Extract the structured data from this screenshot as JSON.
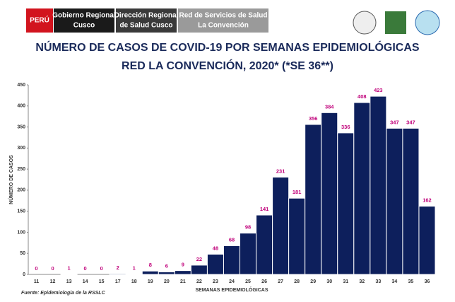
{
  "header": {
    "country": "PERÚ",
    "org1": [
      "Gobierno Regional",
      "Cusco"
    ],
    "org2": [
      "Dirección  Regional",
      "de Salud Cusco"
    ],
    "org3": [
      "Red de Servicios de Salud",
      "La Convención"
    ]
  },
  "chart_data": {
    "type": "bar",
    "title": [
      "NÚMERO DE CASOS DE COVID-19 POR SEMANAS EPIDEMIOLÓGICAS",
      "RED LA CONVENCIÓN, 2020* (*SE 36**)"
    ],
    "x_label": "SEMANAS EPIDEMIOLÓGICAS",
    "y_label": "NÚMERO DE CASOS",
    "source": "Fuente: Epidemiologia de la RSSLC",
    "categories": [
      "11",
      "12",
      "13",
      "14",
      "15",
      "17",
      "18",
      "19",
      "20",
      "21",
      "22",
      "23",
      "24",
      "25",
      "26",
      "27",
      "28",
      "29",
      "30",
      "31",
      "32",
      "33",
      "34",
      "35",
      "36"
    ],
    "values": [
      0,
      0,
      1,
      0,
      0,
      2,
      1,
      8,
      6,
      9,
      22,
      48,
      68,
      98,
      141,
      231,
      181,
      356,
      384,
      336,
      408,
      423,
      347,
      347,
      162
    ],
    "color": "#0d1f5c",
    "label_color": "#c0007a",
    "ylim": [
      0,
      450
    ],
    "yticks": [
      0,
      50,
      100,
      150,
      200,
      250,
      300,
      350,
      400,
      450
    ]
  }
}
